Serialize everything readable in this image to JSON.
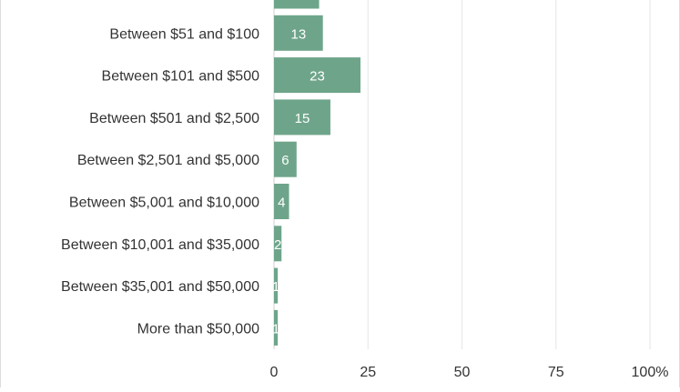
{
  "chart_data": {
    "type": "bar",
    "orientation": "horizontal",
    "categories": [
      "",
      "Between $51 and $100",
      "Between $101 and $500",
      "Between $501 and $2,500",
      "Between $2,501 and $5,000",
      "Between $5,001 and $10,000",
      "Between $10,001 and $35,000",
      "Between $35,001 and $50,000",
      "More than $50,000"
    ],
    "values": [
      12,
      13,
      23,
      15,
      6,
      4,
      2,
      1,
      1
    ],
    "data_labels": [
      "",
      "13",
      "23",
      "15",
      "6",
      "4",
      "2",
      "1",
      "1"
    ],
    "xlim": [
      0,
      100
    ],
    "xticks": [
      0,
      25,
      50,
      75,
      100
    ],
    "xtick_labels": [
      "0",
      "25",
      "50",
      "75",
      "100%"
    ],
    "grid": true,
    "bar_color": "#6ea58a",
    "grid_color": "#e6e6e6",
    "title": "",
    "xlabel": "",
    "ylabel": ""
  }
}
